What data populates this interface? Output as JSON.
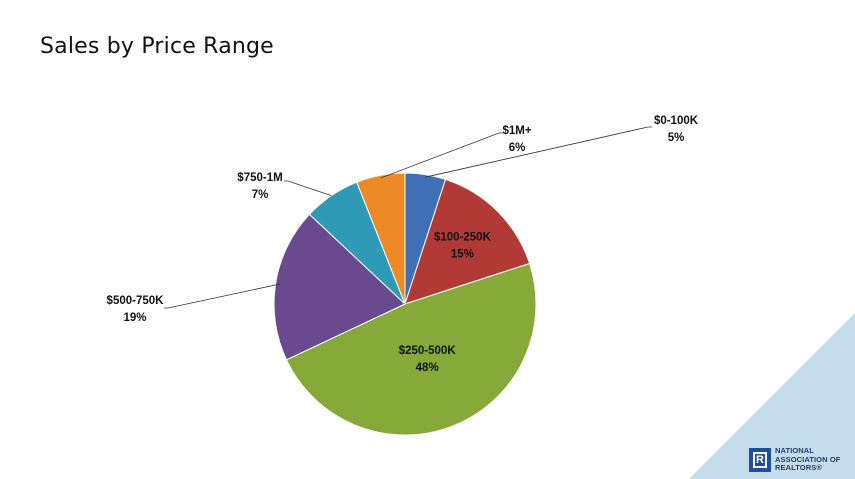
{
  "page": {
    "title": "Sales by Price Range",
    "accent_color": "#c5dcec"
  },
  "logo": {
    "mark_letter": "R",
    "line1": "NATIONAL",
    "line2": "ASSOCIATION OF",
    "line3": "REALTORS®"
  },
  "chart_data": {
    "type": "pie",
    "title": "Sales by Price Range",
    "start": "12 o'clock",
    "direction": "clockwise",
    "slices": [
      {
        "label": "$0-100K",
        "value": 5,
        "value_label": "5%",
        "color": "#3f6fb5"
      },
      {
        "label": "$100-250K",
        "value": 15,
        "value_label": "15%",
        "color": "#b23a36"
      },
      {
        "label": "$250-500K",
        "value": 48,
        "value_label": "48%",
        "color": "#86a93a"
      },
      {
        "label": "$500-750K",
        "value": 19,
        "value_label": "19%",
        "color": "#6a4a8e"
      },
      {
        "label": "$750-1M",
        "value": 7,
        "value_label": "7%",
        "color": "#2f9ab5"
      },
      {
        "label": "$1M+",
        "value": 6,
        "value_label": "6%",
        "color": "#ee8a25"
      }
    ]
  }
}
